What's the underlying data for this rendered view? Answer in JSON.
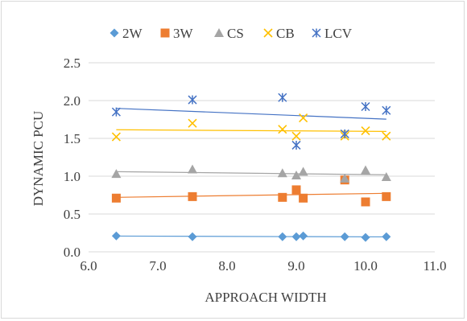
{
  "chart_data": {
    "type": "scatter",
    "title": "",
    "xlabel": "APPROACH WIDTH",
    "ylabel": "DYNAMIC PCU",
    "xlim": [
      6.0,
      11.0
    ],
    "ylim": [
      0.0,
      2.5
    ],
    "x_ticks": [
      "6.0",
      "7.0",
      "8.0",
      "9.0",
      "10.0",
      "11.0"
    ],
    "y_ticks": [
      "0.0",
      "0.5",
      "1.0",
      "1.5",
      "2.0",
      "2.5"
    ],
    "grid": "horizontal",
    "legend_position": "top",
    "trendlines": "linear",
    "x": [
      6.4,
      7.5,
      8.8,
      9.0,
      9.1,
      9.7,
      10.0,
      10.3
    ],
    "series": [
      {
        "name": "2W",
        "marker": "diamond",
        "color": "#5b9bd5",
        "values": [
          0.21,
          0.2,
          0.2,
          0.2,
          0.21,
          0.2,
          0.19,
          0.2
        ]
      },
      {
        "name": "3W",
        "marker": "square",
        "color": "#ed7d31",
        "values": [
          0.71,
          0.73,
          0.72,
          0.82,
          0.71,
          0.95,
          0.66,
          0.73
        ]
      },
      {
        "name": "CS",
        "marker": "triangle",
        "color": "#a5a5a5",
        "values": [
          1.03,
          1.09,
          1.04,
          1.01,
          1.06,
          0.97,
          1.08,
          0.99
        ]
      },
      {
        "name": "CB",
        "marker": "x",
        "color": "#ffc000",
        "values": [
          1.52,
          1.7,
          1.62,
          1.53,
          1.77,
          1.53,
          1.6,
          1.53
        ]
      },
      {
        "name": "LCV",
        "marker": "star",
        "color": "#4472c4",
        "values": [
          1.85,
          2.01,
          2.04,
          1.41,
          null,
          1.56,
          1.92,
          1.87
        ]
      }
    ]
  }
}
